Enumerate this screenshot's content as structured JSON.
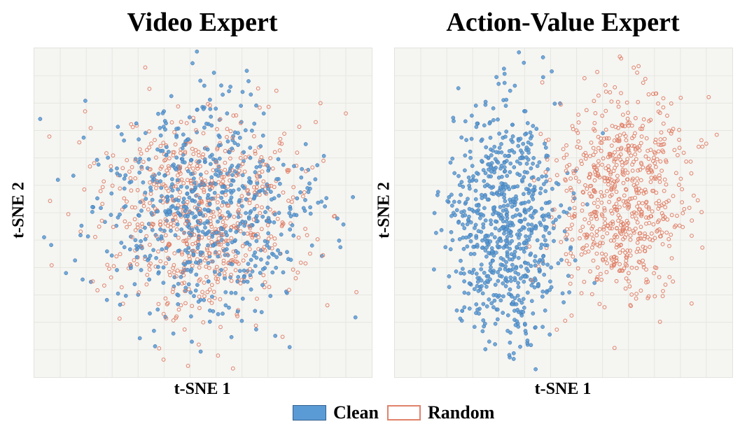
{
  "chart_data": [
    {
      "type": "scatter",
      "title": "Video Expert",
      "xlabel": "t-SNE 1",
      "ylabel": "t-SNE 2",
      "grid": true,
      "series": [
        {
          "name": "Clean",
          "color": "#5b9bd5",
          "marker": "filled-circle",
          "distribution": {
            "center": [
              0.0,
              0.0
            ],
            "spread": [
              1.0,
              1.0
            ],
            "count": 700
          }
        },
        {
          "name": "Random",
          "color": "#e0826a",
          "marker": "open-circle",
          "distribution": {
            "center": [
              0.0,
              0.0
            ],
            "spread": [
              1.0,
              1.0
            ],
            "count": 650
          }
        }
      ]
    },
    {
      "type": "scatter",
      "title": "Action-Value Expert",
      "xlabel": "t-SNE 1",
      "ylabel": "t-SNE 2",
      "grid": true,
      "series": [
        {
          "name": "Clean",
          "color": "#5b9bd5",
          "marker": "filled-circle",
          "distribution": {
            "center": [
              -1.1,
              -0.2
            ],
            "spread": [
              0.55,
              1.05
            ],
            "count": 750
          }
        },
        {
          "name": "Random",
          "color": "#e0826a",
          "marker": "open-circle",
          "distribution": {
            "center": [
              1.1,
              0.3
            ],
            "spread": [
              0.6,
              1.0
            ],
            "count": 700
          }
        }
      ]
    }
  ],
  "legend": {
    "position": "bottom-center",
    "items": [
      {
        "label": "Clean",
        "color": "#5b9bd5",
        "style": "filled"
      },
      {
        "label": "Random",
        "color": "#e0826a",
        "style": "outline"
      }
    ]
  }
}
